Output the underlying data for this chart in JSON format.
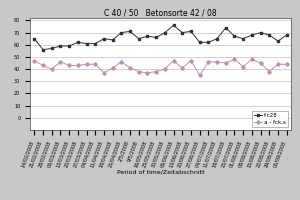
{
  "title": "C 40 / 50   Betonsorte 42 / 08",
  "xlabel": "Period of time/Zeitabschnitt",
  "ylabel": "",
  "ylim": [
    -10,
    82
  ],
  "yticks": [
    0,
    10,
    20,
    30,
    40,
    50,
    60,
    70,
    80
  ],
  "ytick_labels": [
    "0",
    "10",
    "20",
    "30",
    "40",
    "50",
    "60",
    "70",
    "80"
  ],
  "series1_label": "f·c28",
  "series2_label": "a - fck,s",
  "series1_color": "#303030",
  "series2_color": "#c090b0",
  "series1_values": [
    65,
    56,
    57,
    59,
    59,
    62,
    61,
    61,
    65,
    64,
    70,
    71,
    65,
    67,
    66,
    70,
    76,
    70,
    71,
    62,
    62,
    65,
    74,
    67,
    65,
    68,
    70,
    68,
    63,
    68
  ],
  "series2_values": [
    47,
    43,
    40,
    46,
    43,
    43,
    44,
    44,
    37,
    41,
    46,
    41,
    38,
    37,
    38,
    40,
    47,
    41,
    47,
    35,
    46,
    46,
    45,
    48,
    42,
    48,
    45,
    38,
    44,
    44
  ],
  "x_labels": [
    "14/02/2008",
    "21/02/2008",
    "28/02/2008",
    "06/03/2008",
    "13/03/2008",
    "20/03/2008",
    "27/03/2008",
    "04/04/2008",
    "11/04/2008",
    "18/04/2008",
    "25/04/2008",
    "2/5/2008",
    "9/5/2008",
    "16/05/2008",
    "23/05/2008",
    "30/05/2008",
    "06/06/2008",
    "13/06/2008",
    "20/06/2008",
    "27/06/2008",
    "04/07/2008",
    "11/07/2008",
    "18/07/2008",
    "25/07/2008",
    "01/08/2008",
    "08/08/2008",
    "15/08/2008",
    "22/08/2008",
    "29/08/2008",
    "05/09/2008"
  ],
  "bg_color": "#c8c8c8",
  "plot_bg": "#ffffff",
  "grid_color": "#b0b0b0",
  "legend_fontsize": 4,
  "title_fontsize": 5.5,
  "tick_fontsize": 3.5,
  "xlabel_fontsize": 4.5,
  "figsize": [
    3.0,
    2.0
  ],
  "dpi": 100
}
